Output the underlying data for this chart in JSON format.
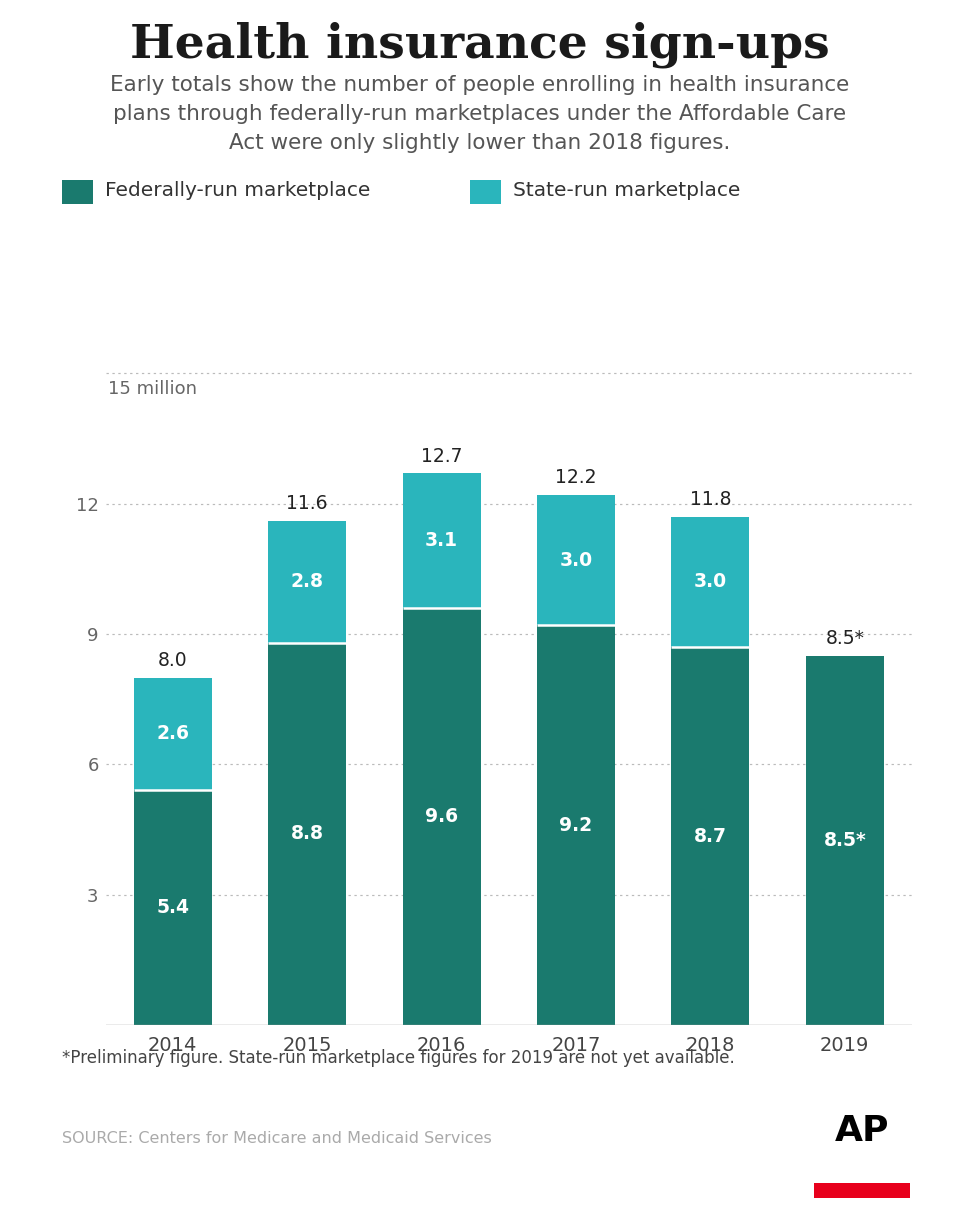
{
  "title": "Health insurance sign-ups",
  "subtitle": "Early totals show the number of people enrolling in health insurance\nplans through federally-run marketplaces under the Affordable Care\nAct were only slightly lower than 2018 figures.",
  "years": [
    "2014",
    "2015",
    "2016",
    "2017",
    "2018",
    "2019"
  ],
  "federal": [
    5.4,
    8.8,
    9.6,
    9.2,
    8.7,
    8.5
  ],
  "state": [
    2.6,
    2.8,
    3.1,
    3.0,
    3.0,
    null
  ],
  "totals": [
    "8.0",
    "11.6",
    "12.7",
    "12.2",
    "11.8",
    "8.5*"
  ],
  "federal_labels": [
    "5.4",
    "8.8",
    "9.6",
    "9.2",
    "8.7",
    "8.5*"
  ],
  "state_labels": [
    "2.6",
    "2.8",
    "3.1",
    "3.0",
    "3.0",
    ""
  ],
  "color_federal": "#1a7a6e",
  "color_state": "#2ab5bc",
  "yticks": [
    0,
    3,
    6,
    9,
    12
  ],
  "ylim": [
    0,
    15.5
  ],
  "ylabel_top": "15 million",
  "legend_federal": "Federally-run marketplace",
  "legend_state": "State-run marketplace",
  "footnote": "*Preliminary figure. State-run marketplace figures for 2019 are not yet available.",
  "source": "SOURCE: Centers for Medicare and Medicaid Services",
  "bg_color": "#ffffff",
  "title_fontsize": 34,
  "subtitle_fontsize": 15.5,
  "bar_width": 0.58
}
